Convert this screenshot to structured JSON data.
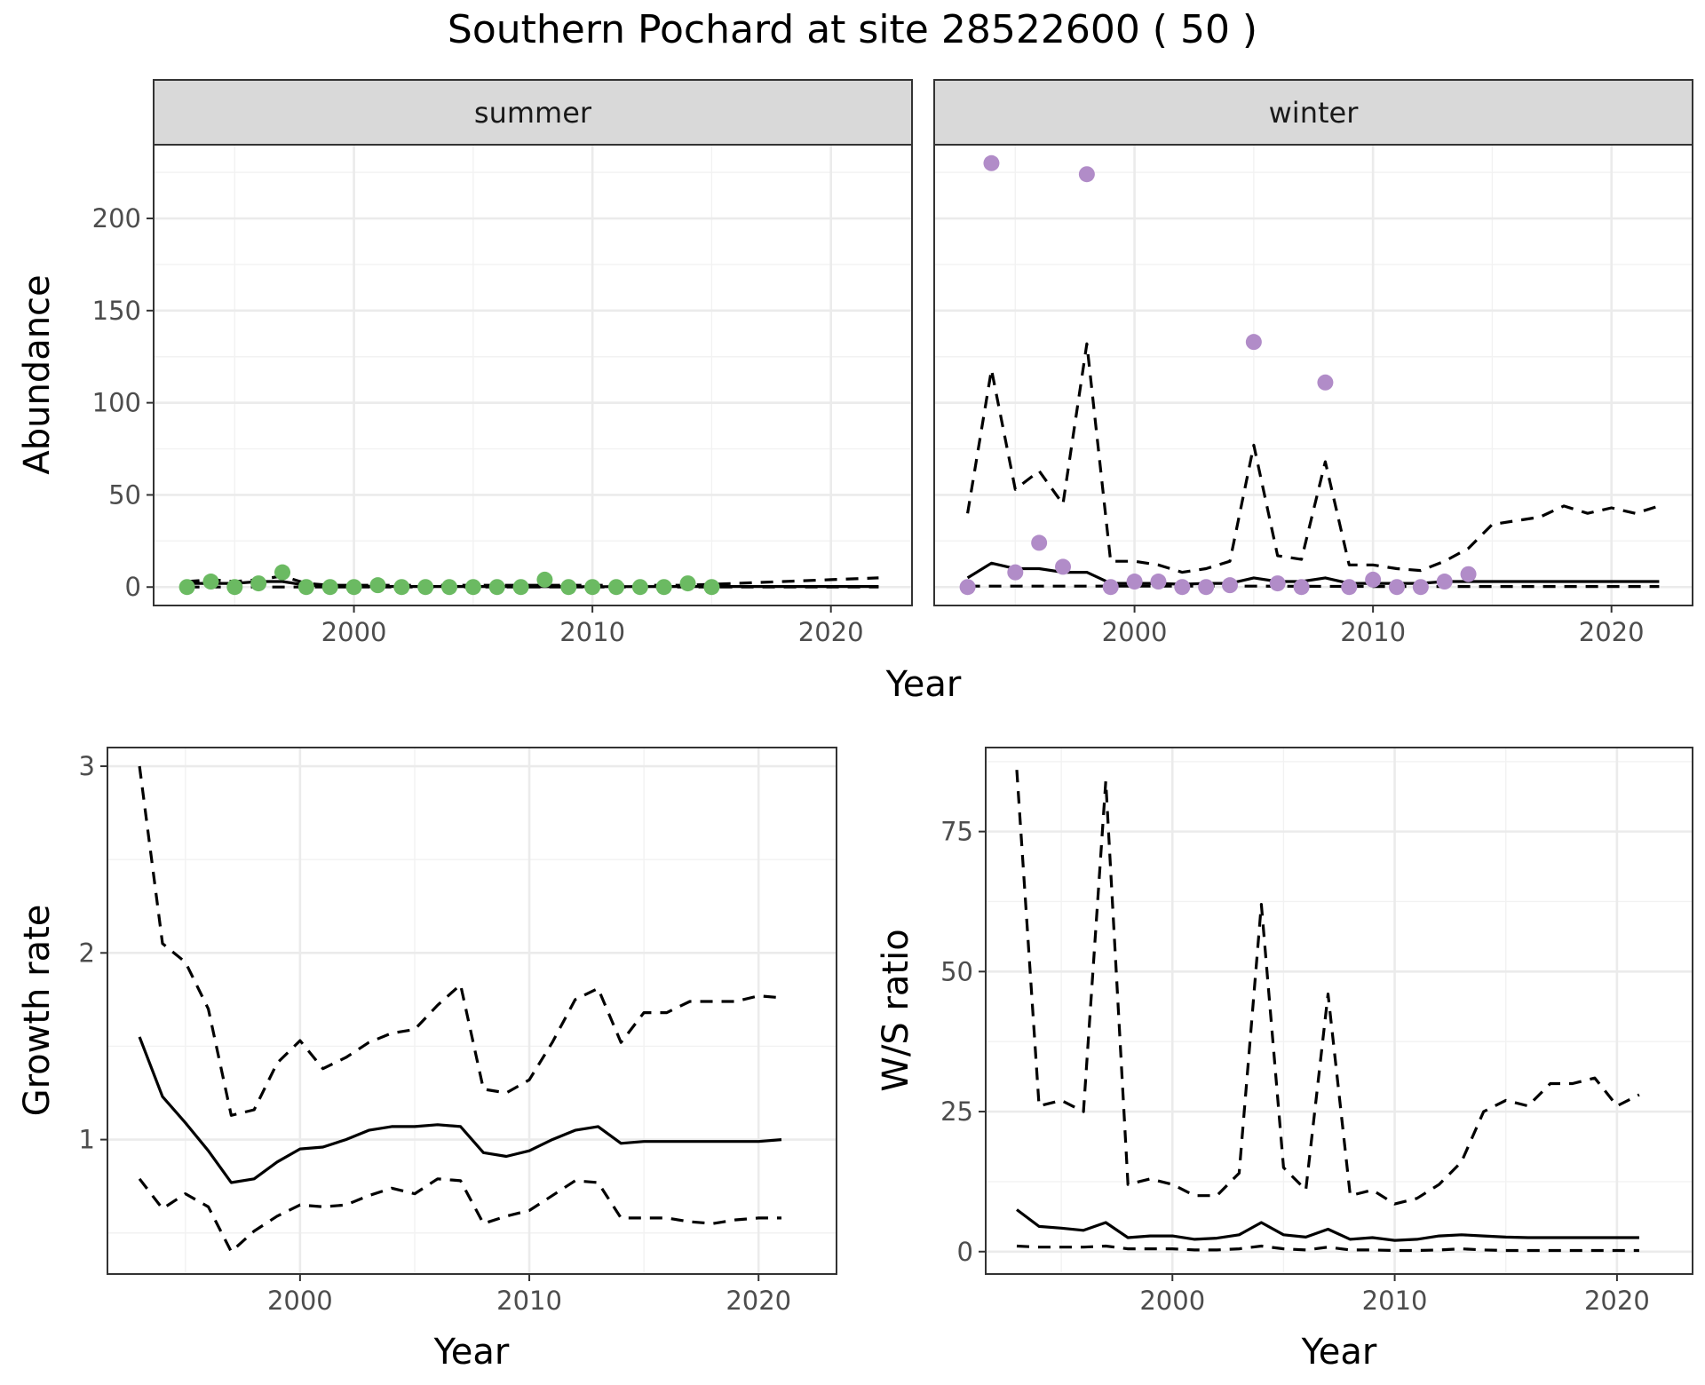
{
  "chart_data": {
    "title": "Southern Pochard at site 28522600 ( 50 )",
    "charts": [
      {
        "id": "abundance",
        "type": "line+scatter",
        "ylabel": "Abundance",
        "xlabel": "Year",
        "xlim": [
          1991.6,
          2023.4
        ],
        "ylim": [
          -10,
          240
        ],
        "x_ticks": [
          2000,
          2010,
          2020
        ],
        "x_tick_labels": [
          "2000",
          "2010",
          "2020"
        ],
        "y_ticks": [
          0,
          50,
          100,
          150,
          200
        ],
        "y_tick_labels": [
          "0",
          "50",
          "100",
          "150",
          "200"
        ],
        "grid": true,
        "facets": [
          {
            "strip_label": "summer",
            "point_color": "#6bba62",
            "points": {
              "x": [
                1993,
                1994,
                1995,
                1996,
                1997,
                1998,
                1999,
                2000,
                2001,
                2002,
                2003,
                2004,
                2005,
                2006,
                2007,
                2008,
                2009,
                2010,
                2011,
                2012,
                2013,
                2014,
                2015
              ],
              "y": [
                0,
                3,
                0,
                2,
                8,
                0,
                0,
                0,
                1,
                0,
                0,
                0,
                0,
                0,
                0,
                4,
                0,
                0,
                0,
                0,
                0,
                2,
                0
              ]
            },
            "mean": {
              "x": [
                1993,
                1994,
                1995,
                1996,
                1997,
                1998,
                1999,
                2000,
                2002,
                2005,
                2010,
                2015,
                2020,
                2022
              ],
              "y": [
                2,
                2,
                2,
                3,
                3,
                1,
                0.5,
                0.5,
                0.3,
                0.3,
                0.2,
                0.3,
                0.3,
                0.3
              ]
            },
            "upper": {
              "x": [
                1993,
                1994,
                1995,
                1996,
                1997,
                1998,
                1999,
                2000,
                2005,
                2010,
                2014,
                2015,
                2016,
                2018,
                2020,
                2022
              ],
              "y": [
                3,
                4,
                3,
                4,
                6,
                2,
                1,
                1,
                1,
                1,
                1,
                1.5,
                2,
                3,
                4,
                5
              ]
            },
            "lower": {
              "x": [
                1993,
                2022
              ],
              "y": [
                0,
                0
              ]
            }
          },
          {
            "strip_label": "winter",
            "point_color": "#b18cc8",
            "points": {
              "x": [
                1993,
                1994,
                1995,
                1996,
                1997,
                1998,
                1999,
                2000,
                2001,
                2002,
                2003,
                2004,
                2005,
                2006,
                2007,
                2008,
                2009,
                2010,
                2011,
                2012,
                2013,
                2014
              ],
              "y": [
                0,
                230,
                8,
                24,
                11,
                224,
                0,
                3,
                3,
                0,
                0,
                1,
                133,
                2,
                0,
                111,
                0,
                4,
                0,
                0,
                3,
                7
              ]
            },
            "mean": {
              "x": [
                1993,
                1994,
                1995,
                1996,
                1997,
                1998,
                1999,
                2000,
                2001,
                2002,
                2003,
                2004,
                2005,
                2006,
                2007,
                2008,
                2009,
                2010,
                2011,
                2012,
                2013,
                2014,
                2015,
                2016,
                2017,
                2018,
                2019,
                2020,
                2021,
                2022
              ],
              "y": [
                5,
                13,
                10,
                10,
                8,
                8,
                2,
                2,
                2,
                1.5,
                2,
                2,
                5,
                3,
                3,
                5,
                2,
                2,
                2,
                2,
                3,
                3,
                3,
                3,
                3,
                3,
                3,
                3,
                3,
                3
              ]
            },
            "upper": {
              "x": [
                1993,
                1994,
                1995,
                1996,
                1997,
                1998,
                1999,
                2000,
                2001,
                2002,
                2003,
                2004,
                2005,
                2006,
                2007,
                2008,
                2009,
                2010,
                2011,
                2012,
                2013,
                2014,
                2015,
                2016,
                2017,
                2018,
                2019,
                2020,
                2021,
                2022
              ],
              "y": [
                40,
                118,
                53,
                63,
                45,
                132,
                14,
                14,
                12,
                8,
                10,
                14,
                77,
                17,
                15,
                68,
                12,
                12,
                10,
                9,
                14,
                21,
                34,
                36,
                38,
                44,
                40,
                43,
                40,
                44
              ]
            },
            "lower": {
              "x": [
                1993,
                2000,
                2005,
                2010,
                2015,
                2022
              ],
              "y": [
                0.5,
                0.5,
                0.5,
                0.3,
                0.3,
                0.3
              ]
            }
          }
        ]
      },
      {
        "id": "growth",
        "type": "line",
        "ylabel": "Growth rate",
        "xlabel": "Year",
        "xlim": [
          1991.6,
          2023.4
        ],
        "ylim": [
          0.28,
          3.1
        ],
        "x_ticks": [
          2000,
          2010,
          2020
        ],
        "x_tick_labels": [
          "2000",
          "2010",
          "2020"
        ],
        "y_ticks": [
          1,
          2,
          3
        ],
        "y_tick_labels": [
          "1",
          "2",
          "3"
        ],
        "grid": true,
        "mean": {
          "x": [
            1993,
            1994,
            1995,
            1996,
            1997,
            1998,
            1999,
            2000,
            2001,
            2002,
            2003,
            2004,
            2005,
            2006,
            2007,
            2008,
            2009,
            2010,
            2011,
            2012,
            2013,
            2014,
            2015,
            2016,
            2017,
            2018,
            2019,
            2020,
            2021
          ],
          "y": [
            1.55,
            1.23,
            1.09,
            0.94,
            0.77,
            0.79,
            0.88,
            0.95,
            0.96,
            1.0,
            1.05,
            1.07,
            1.07,
            1.08,
            1.07,
            0.93,
            0.91,
            0.94,
            1.0,
            1.05,
            1.07,
            0.98,
            0.99,
            0.99,
            0.99,
            0.99,
            0.99,
            0.99,
            1.0
          ]
        },
        "upper": {
          "x": [
            1993,
            1994,
            1995,
            1996,
            1997,
            1998,
            1999,
            2000,
            2001,
            2002,
            2003,
            2004,
            2005,
            2006,
            2007,
            2008,
            2009,
            2010,
            2011,
            2012,
            2013,
            2014,
            2015,
            2016,
            2017,
            2018,
            2019,
            2020,
            2021
          ],
          "y": [
            3.0,
            2.05,
            1.95,
            1.7,
            1.13,
            1.16,
            1.41,
            1.53,
            1.38,
            1.44,
            1.52,
            1.57,
            1.59,
            1.72,
            1.83,
            1.27,
            1.25,
            1.32,
            1.52,
            1.75,
            1.81,
            1.52,
            1.68,
            1.68,
            1.74,
            1.74,
            1.74,
            1.77,
            1.76
          ]
        },
        "lower": {
          "x": [
            1993,
            1994,
            1995,
            1996,
            1997,
            1998,
            1999,
            2000,
            2001,
            2002,
            2003,
            2004,
            2005,
            2006,
            2007,
            2008,
            2009,
            2010,
            2011,
            2012,
            2013,
            2014,
            2015,
            2016,
            2017,
            2018,
            2019,
            2020,
            2021
          ],
          "y": [
            0.79,
            0.63,
            0.71,
            0.64,
            0.4,
            0.51,
            0.59,
            0.65,
            0.64,
            0.65,
            0.7,
            0.74,
            0.71,
            0.79,
            0.78,
            0.55,
            0.59,
            0.62,
            0.7,
            0.78,
            0.77,
            0.58,
            0.58,
            0.58,
            0.56,
            0.55,
            0.57,
            0.58,
            0.58
          ]
        }
      },
      {
        "id": "ws_ratio",
        "type": "line",
        "ylabel": "W/S ratio",
        "xlabel": "Year",
        "xlim": [
          1991.6,
          2023.4
        ],
        "ylim": [
          -4,
          90
        ],
        "x_ticks": [
          2000,
          2010,
          2020
        ],
        "x_tick_labels": [
          "2000",
          "2010",
          "2020"
        ],
        "y_ticks": [
          0,
          25,
          50,
          75
        ],
        "y_tick_labels": [
          "0",
          "25",
          "50",
          "75"
        ],
        "grid": true,
        "mean": {
          "x": [
            1993,
            1994,
            1995,
            1996,
            1997,
            1998,
            1999,
            2000,
            2001,
            2002,
            2003,
            2004,
            2005,
            2006,
            2007,
            2008,
            2009,
            2010,
            2011,
            2012,
            2013,
            2014,
            2015,
            2016,
            2017,
            2018,
            2019,
            2020,
            2021
          ],
          "y": [
            7.5,
            4.5,
            4.2,
            3.8,
            5.2,
            2.5,
            2.8,
            2.8,
            2.2,
            2.4,
            3.0,
            5.2,
            3.0,
            2.6,
            4.0,
            2.2,
            2.5,
            2.0,
            2.2,
            2.8,
            3.0,
            2.8,
            2.6,
            2.5,
            2.5,
            2.5,
            2.5,
            2.5,
            2.5
          ]
        },
        "upper": {
          "x": [
            1993,
            1994,
            1995,
            1996,
            1997,
            1998,
            1999,
            2000,
            2001,
            2002,
            2003,
            2004,
            2005,
            2006,
            2007,
            2008,
            2009,
            2010,
            2011,
            2012,
            2013,
            2014,
            2015,
            2016,
            2017,
            2018,
            2019,
            2020,
            2021
          ],
          "y": [
            86,
            26,
            27,
            25,
            84,
            12,
            13,
            12,
            10,
            10,
            14,
            62,
            15,
            11,
            46,
            10,
            11,
            8.5,
            9.5,
            12,
            16,
            25,
            27,
            26,
            30,
            30,
            31,
            26,
            28
          ]
        },
        "lower": {
          "x": [
            1993,
            1994,
            1995,
            1996,
            1997,
            1998,
            1999,
            2000,
            2001,
            2002,
            2003,
            2004,
            2005,
            2006,
            2007,
            2008,
            2009,
            2010,
            2011,
            2012,
            2013,
            2014,
            2015,
            2016,
            2017,
            2018,
            2019,
            2020,
            2021
          ],
          "y": [
            1.0,
            0.8,
            0.8,
            0.8,
            1.0,
            0.5,
            0.5,
            0.5,
            0.3,
            0.3,
            0.5,
            1.0,
            0.5,
            0.3,
            0.8,
            0.3,
            0.3,
            0.2,
            0.2,
            0.3,
            0.5,
            0.3,
            0.2,
            0.2,
            0.2,
            0.2,
            0.2,
            0.2,
            0.2
          ]
        }
      }
    ]
  }
}
